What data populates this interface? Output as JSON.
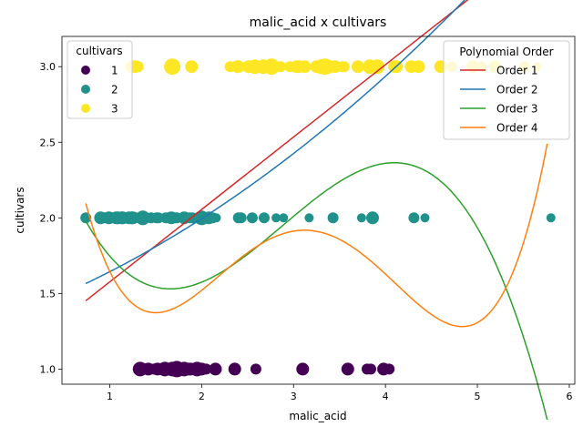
{
  "chart_data": {
    "type": "scatter",
    "title": "malic_acid x cultivars",
    "xlabel": "malic_acid",
    "ylabel": "cultivars",
    "xlim": [
      0.48,
      6.06
    ],
    "ylim": [
      0.9,
      3.2
    ],
    "xticks": [
      1,
      2,
      3,
      4,
      5,
      6
    ],
    "yticks": [
      1.0,
      1.5,
      2.0,
      2.5,
      3.0
    ],
    "xtick_labels": [
      "1",
      "2",
      "3",
      "4",
      "5",
      "6"
    ],
    "ytick_labels": [
      "1.0",
      "1.5",
      "2.0",
      "2.5",
      "3.0"
    ],
    "grid": false,
    "series": [
      {
        "name": "1",
        "color": "#440154",
        "y": 1.0,
        "x": [
          1.33,
          1.35,
          1.42,
          1.48,
          1.52,
          1.58,
          1.6,
          1.65,
          1.68,
          1.71,
          1.73,
          1.76,
          1.79,
          1.81,
          1.83,
          1.86,
          1.88,
          1.92,
          1.95,
          1.97,
          2.0,
          2.02,
          2.05,
          2.15,
          2.36,
          2.59,
          3.1,
          3.59,
          3.8,
          3.84,
          3.98,
          4.04
        ],
        "size": [
          8,
          7,
          7,
          6,
          7,
          7,
          8,
          7,
          8,
          8,
          9,
          7,
          7,
          8,
          7,
          7,
          7,
          6,
          8,
          7,
          7,
          6,
          6,
          7,
          7,
          6,
          7,
          7,
          6,
          6,
          7,
          6
        ]
      },
      {
        "name": "2",
        "color": "#21918c",
        "y": 2.0,
        "x": [
          0.74,
          0.9,
          0.94,
          0.98,
          0.99,
          1.01,
          1.02,
          1.07,
          1.09,
          1.1,
          1.13,
          1.14,
          1.19,
          1.21,
          1.24,
          1.25,
          1.28,
          1.35,
          1.36,
          1.39,
          1.45,
          1.51,
          1.53,
          1.61,
          1.64,
          1.67,
          1.72,
          1.73,
          1.8,
          1.81,
          1.87,
          1.9,
          1.98,
          2.0,
          2.03,
          2.05,
          2.08,
          2.12,
          2.16,
          2.4,
          2.43,
          2.55,
          2.68,
          2.81,
          2.89,
          3.17,
          3.43,
          3.74,
          3.86,
          4.31,
          4.43,
          5.8
        ],
        "size": [
          6,
          7,
          6,
          6,
          7,
          6,
          6,
          7,
          7,
          6,
          7,
          7,
          6,
          7,
          7,
          7,
          6,
          7,
          8,
          6,
          6,
          6,
          6,
          6,
          6,
          7,
          6,
          6,
          6,
          7,
          6,
          6,
          7,
          8,
          6,
          6,
          7,
          6,
          5,
          6,
          6,
          6,
          6,
          5,
          5,
          5,
          6,
          5,
          7,
          6,
          5,
          5
        ]
      },
      {
        "name": "3",
        "color": "#fde725",
        "y": 3.0,
        "x": [
          1.24,
          1.28,
          1.31,
          1.68,
          1.89,
          2.31,
          2.39,
          2.4,
          2.51,
          2.55,
          2.57,
          2.58,
          2.59,
          2.67,
          2.68,
          2.76,
          2.86,
          2.96,
          3.03,
          3.06,
          3.12,
          3.25,
          3.27,
          3.3,
          3.34,
          3.37,
          3.45,
          3.53,
          3.55,
          3.7,
          3.83,
          3.9,
          3.91,
          4.1,
          4.12,
          4.28,
          4.36,
          4.6,
          4.61,
          4.72,
          4.95,
          5.04,
          5.19,
          5.51,
          5.65
        ],
        "size": [
          7,
          7,
          6,
          9,
          7,
          6,
          7,
          7,
          7,
          7,
          7,
          8,
          7,
          8,
          7,
          9,
          6,
          6,
          7,
          7,
          7,
          7,
          7,
          8,
          9,
          8,
          7,
          6,
          6,
          7,
          8,
          6,
          8,
          7,
          7,
          7,
          7,
          7,
          6,
          6,
          7,
          6,
          7,
          6,
          5
        ]
      }
    ],
    "fits": [
      {
        "name": "Order 1",
        "color": "#d62728",
        "coef": [
          1.0977,
          0.4789
        ]
      },
      {
        "name": "Order 2",
        "color": "#1f77b4",
        "coef": [
          1.3733,
          0.2308,
          0.04
        ]
      },
      {
        "name": "Order 3",
        "color": "#2ca02c",
        "coef": [
          3.2208,
          -2.3542,
          0.9964,
          -0.1154
        ]
      },
      {
        "name": "Order 4",
        "color": "#ff7f0e",
        "coef": [
          5.3131,
          -6.9032,
          4.1219,
          -0.9618,
          0.0763
        ]
      }
    ],
    "fit_xrange": [
      0.74,
      5.76
    ],
    "legend_cultivars": {
      "title": "cultivars",
      "placement": "top-left",
      "entries": [
        "1",
        "2",
        "3"
      ]
    },
    "legend_fits": {
      "title": "Polynomial Order",
      "placement": "top-right",
      "entries": [
        "Order 1",
        "Order 2",
        "Order 3",
        "Order 4"
      ]
    }
  }
}
